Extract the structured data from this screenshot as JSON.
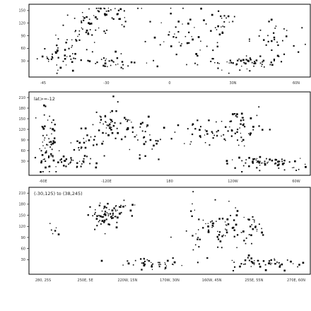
{
  "chart_data": [
    {
      "type": "scatter",
      "series_color": "#0b0b0b",
      "ylim": [
        0,
        160
      ],
      "y_ticks": [
        "30",
        "60",
        "90",
        "120",
        "150"
      ],
      "x_tick_labels": [
        "-45",
        "-30",
        "0",
        "30N",
        "60N"
      ],
      "clusters": [
        {
          "x": 0.1,
          "y": 48,
          "sx": 0.04,
          "sy": 22,
          "n": 40
        },
        {
          "x": 0.2,
          "y": 112,
          "sx": 0.05,
          "sy": 26,
          "n": 55
        },
        {
          "x": 0.3,
          "y": 145,
          "sx": 0.035,
          "sy": 14,
          "n": 20
        },
        {
          "x": 0.28,
          "y": 30,
          "sx": 0.06,
          "sy": 10,
          "n": 35
        },
        {
          "x": 0.55,
          "y": 95,
          "sx": 0.06,
          "sy": 30,
          "n": 45
        },
        {
          "x": 0.68,
          "y": 120,
          "sx": 0.03,
          "sy": 20,
          "n": 25
        },
        {
          "x": 0.74,
          "y": 26,
          "sx": 0.07,
          "sy": 10,
          "n": 55
        },
        {
          "x": 0.88,
          "y": 80,
          "sx": 0.06,
          "sy": 24,
          "n": 30
        }
      ]
    },
    {
      "type": "scatter",
      "annotation": "lat>=-12",
      "series_color": "#0b0b0b",
      "ylim": [
        0,
        220
      ],
      "y_ticks": [
        "30",
        "60",
        "90",
        "120",
        "150",
        "180",
        "210"
      ],
      "x_tick_labels": [
        "-60E",
        "-120E",
        "180",
        "120W",
        "60W"
      ],
      "clusters": [
        {
          "x": 0.05,
          "y": 95,
          "sx": 0.02,
          "sy": 45,
          "n": 55
        },
        {
          "x": 0.18,
          "y": 60,
          "sx": 0.05,
          "sy": 25,
          "n": 30
        },
        {
          "x": 0.28,
          "y": 140,
          "sx": 0.05,
          "sy": 25,
          "n": 60
        },
        {
          "x": 0.4,
          "y": 100,
          "sx": 0.05,
          "sy": 30,
          "n": 35
        },
        {
          "x": 0.62,
          "y": 105,
          "sx": 0.04,
          "sy": 25,
          "n": 30
        },
        {
          "x": 0.75,
          "y": 130,
          "sx": 0.04,
          "sy": 30,
          "n": 50
        },
        {
          "x": 0.85,
          "y": 28,
          "sx": 0.08,
          "sy": 8,
          "n": 70
        },
        {
          "x": 0.12,
          "y": 30,
          "sx": 0.05,
          "sy": 10,
          "n": 35
        }
      ]
    },
    {
      "type": "scatter",
      "annotation": "(-30,125) to (38,245)",
      "series_color": "#0b0b0b",
      "ylim": [
        0,
        220
      ],
      "y_ticks": [
        "30",
        "60",
        "90",
        "120",
        "150",
        "180",
        "210"
      ],
      "x_tick_labels": [
        "280, 25S",
        "250E, 5E",
        "220W, 15N",
        "170W, 30N",
        "160W, 45N",
        "255E, 55N",
        "270E, 60N"
      ],
      "clusters": [
        {
          "x": 0.27,
          "y": 150,
          "sx": 0.04,
          "sy": 15,
          "n": 60
        },
        {
          "x": 0.31,
          "y": 175,
          "sx": 0.03,
          "sy": 8,
          "n": 15
        },
        {
          "x": 0.08,
          "y": 115,
          "sx": 0.01,
          "sy": 8,
          "n": 6
        },
        {
          "x": 0.66,
          "y": 115,
          "sx": 0.05,
          "sy": 30,
          "n": 70
        },
        {
          "x": 0.8,
          "y": 110,
          "sx": 0.03,
          "sy": 25,
          "n": 25
        },
        {
          "x": 0.45,
          "y": 22,
          "sx": 0.06,
          "sy": 8,
          "n": 40
        },
        {
          "x": 0.83,
          "y": 22,
          "sx": 0.08,
          "sy": 8,
          "n": 50
        }
      ]
    }
  ]
}
